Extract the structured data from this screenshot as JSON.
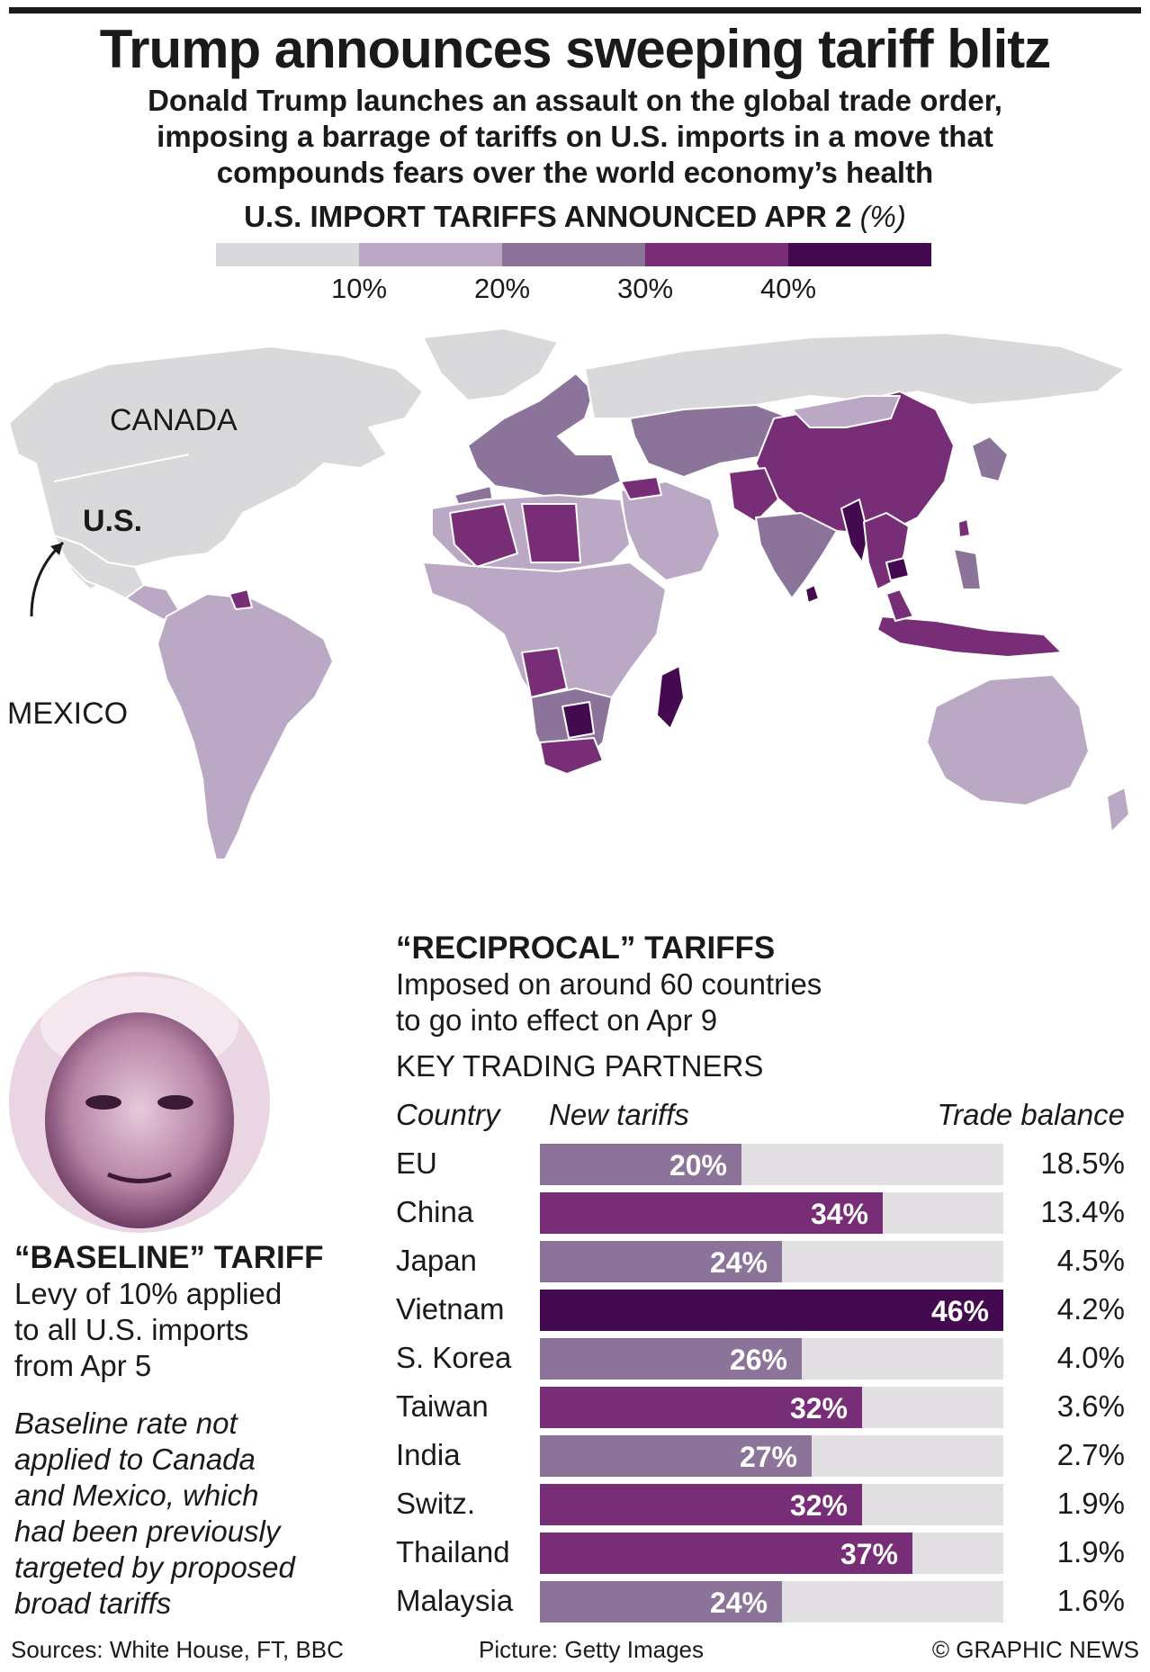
{
  "header": {
    "title": "Trump announces sweeping tariff blitz",
    "subtitle_lines": [
      "Donald Trump launches an assault on the global trade order,",
      "imposing a barrage of tariffs on U.S. imports in a move that",
      "compounds fears over the world economy’s health"
    ]
  },
  "scale": {
    "title": "U.S. IMPORT TARIFFS ANNOUNCED APR 2",
    "unit": "(%)",
    "ticks": [
      "10%",
      "20%",
      "30%",
      "40%"
    ],
    "colors": [
      "#d9d8da",
      "#bba8c5",
      "#8c7399",
      "#782e77",
      "#440a4f"
    ]
  },
  "map": {
    "labels": {
      "canada": "CANADA",
      "us": "U.S.",
      "mexico": "MEXICO"
    }
  },
  "baseline": {
    "heading": "“BASELINE” TARIFF",
    "text_lines": [
      "Levy of 10% applied",
      "to all U.S. imports",
      "from Apr 5"
    ],
    "note_lines": [
      "Baseline rate not",
      "applied to Canada",
      "and Mexico, which",
      "had been previously",
      "targeted by proposed",
      "broad tariffs"
    ]
  },
  "reciprocal": {
    "heading": "“RECIPROCAL” TARIFFS",
    "text_lines": [
      "Imposed on around 60 countries",
      "to go into effect on Apr 9"
    ],
    "subheading": "KEY TRADING PARTNERS",
    "columns": {
      "country": "Country",
      "tariff": "New tariffs",
      "balance": "Trade balance"
    }
  },
  "chart_data": {
    "type": "bar",
    "title": "KEY TRADING PARTNERS",
    "categories": [
      "EU",
      "China",
      "Japan",
      "Vietnam",
      "S. Korea",
      "Taiwan",
      "India",
      "Switz.",
      "Thailand",
      "Malaysia"
    ],
    "series": [
      {
        "name": "New tariffs",
        "values": [
          20,
          34,
          24,
          46,
          26,
          32,
          27,
          32,
          37,
          24
        ]
      }
    ],
    "value_labels": [
      "20%",
      "34%",
      "24%",
      "46%",
      "26%",
      "32%",
      "27%",
      "32%",
      "37%",
      "24%"
    ],
    "trade_balance": [
      "18.5%",
      "13.4%",
      "4.5%",
      "4.2%",
      "4.0%",
      "3.6%",
      "2.7%",
      "1.9%",
      "1.9%",
      "1.6%"
    ],
    "xlim": [
      0,
      46
    ]
  },
  "footer": {
    "sources": "Sources: White House, FT, BBC",
    "picture": "Picture: Getty Images",
    "credit": "© GRAPHIC NEWS"
  }
}
